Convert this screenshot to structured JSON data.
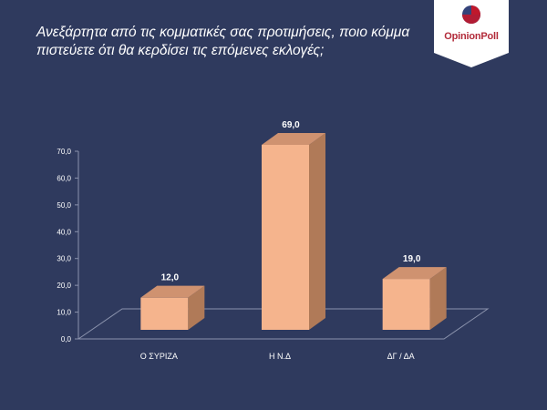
{
  "question": "Ανεξάρτητα από τις κομματικές σας προτιμήσεις, ποιο κόμμα πιστεύετε ότι θα κερδίσει τις επόμενες εκλογές;",
  "logo": {
    "text": "OpinionPoll",
    "colors": {
      "banner": "#ffffff",
      "circle_red": "#c0182c",
      "circle_blue": "#34437a"
    }
  },
  "colors": {
    "background": "#2f3a5e",
    "bar_front": "#f5b48d",
    "bar_side": "#b07a58",
    "bar_top": "#cf9270",
    "axis": "#8b93ad",
    "label": "#ffffff"
  },
  "chart_data": {
    "type": "bar",
    "categories": [
      "Ο ΣΥΡΙΖΑ",
      "Η Ν.Δ",
      "ΔΓ / ΔΑ"
    ],
    "values": [
      12.0,
      69.0,
      19.0
    ],
    "data_labels": [
      "12,0",
      "69,0",
      "19,0"
    ],
    "ylim": [
      0,
      70
    ],
    "yticks": [
      "0,0",
      "10,0",
      "20,0",
      "30,0",
      "40,0",
      "50,0",
      "60,0",
      "70,0"
    ],
    "grid": false,
    "legend": "none",
    "style": "3d-column"
  }
}
